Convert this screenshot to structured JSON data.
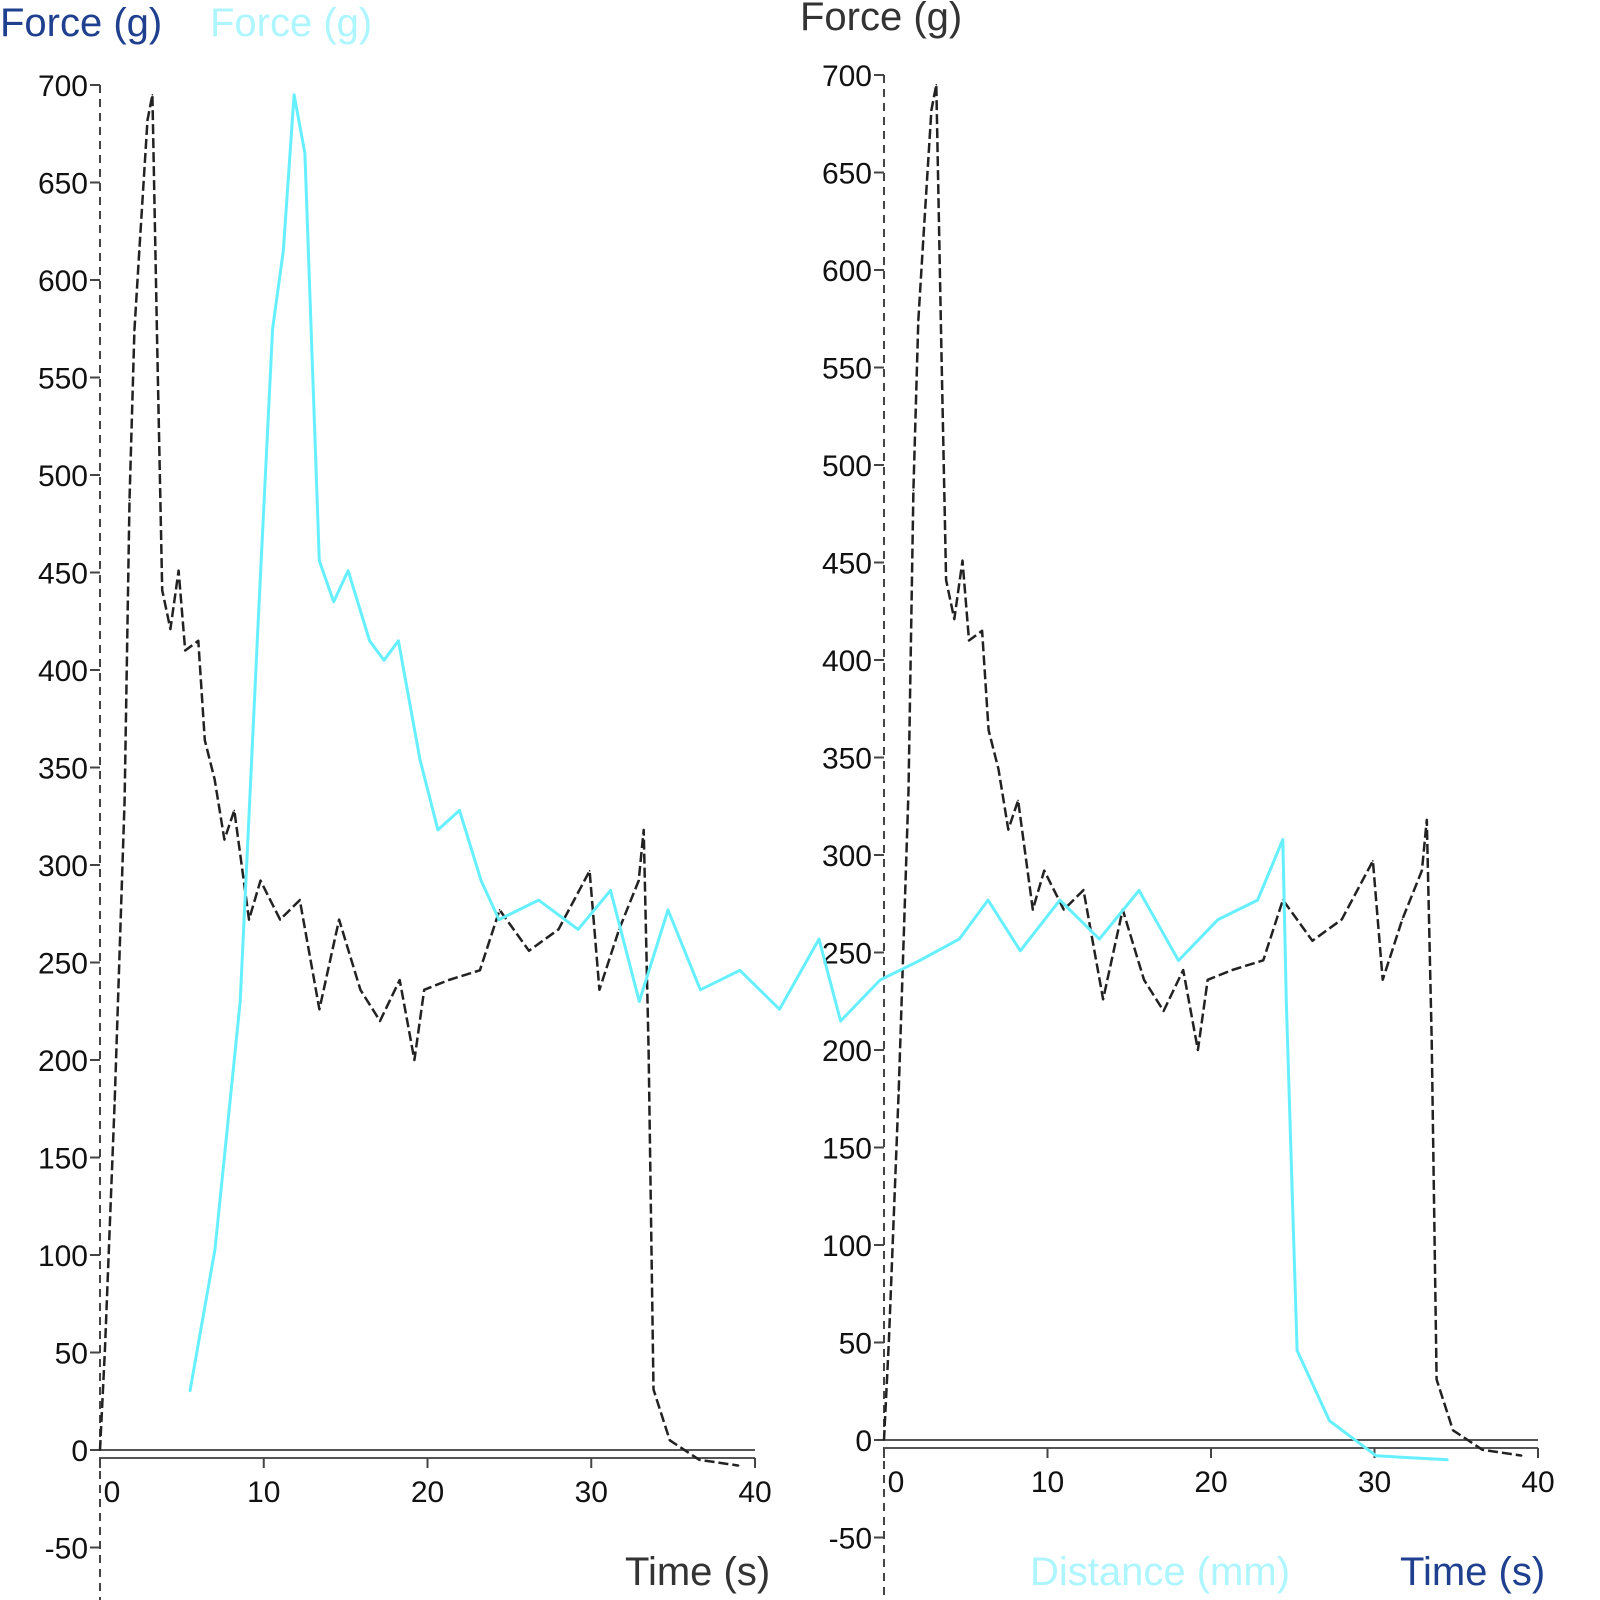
{
  "chart_data": [
    {
      "type": "line",
      "panel": "left",
      "ylabel": "Force (g)",
      "xlabel": "Time (s)",
      "xlim": [
        0,
        40
      ],
      "ylim": [
        -50,
        700
      ],
      "xticks": [
        0,
        10,
        20,
        30,
        40
      ],
      "yticks": [
        700,
        650,
        600,
        550,
        500,
        450,
        400,
        350,
        300,
        250,
        200,
        150,
        100,
        50,
        0,
        -50
      ],
      "grid": false,
      "line_color": "#222222",
      "line_style": "dashed",
      "series": [
        {
          "x": [
            0,
            0.3,
            0.9,
            1.5,
            1.8,
            2.1,
            2.4,
            2.9,
            3.2,
            3.5,
            3.8,
            4.3,
            4.8,
            5.2,
            6,
            6.4,
            7,
            7.6,
            8.2,
            9.1,
            9.8,
            11,
            12.2,
            13.4,
            14.6,
            15.9,
            17.1,
            18.3,
            19.2,
            19.8,
            21.3,
            23.2,
            24.4,
            26.2,
            28,
            29.9,
            30.5,
            31.7,
            32.9,
            33.2,
            33.5,
            33.8,
            34.8,
            36.6,
            39
          ],
          "y": [
            0,
            51,
            179,
            333,
            487,
            574,
            615,
            682,
            695,
            564,
            441,
            421,
            451,
            410,
            415,
            364,
            344,
            313,
            328,
            272,
            292,
            272,
            282,
            226,
            272,
            236,
            220,
            241,
            200,
            236,
            241,
            246,
            277,
            256,
            267,
            297,
            236,
            267,
            292,
            318,
            205,
            31,
            5,
            -5,
            -8
          ]
        }
      ]
    },
    {
      "type": "line",
      "panel": "right",
      "ylabel": "Force (g)",
      "xlabel": "Time (s)",
      "xlim": [
        0,
        40
      ],
      "ylim": [
        -50,
        700
      ],
      "xticks": [
        0,
        10,
        20,
        30,
        40
      ],
      "yticks": [
        700,
        650,
        600,
        550,
        500,
        450,
        400,
        350,
        300,
        250,
        200,
        150,
        100,
        50,
        0,
        -50
      ],
      "grid": false,
      "line_color": "#222222",
      "line_style": "dashed",
      "series": [
        {
          "x": [
            0,
            0.3,
            0.9,
            1.5,
            1.8,
            2.1,
            2.4,
            2.9,
            3.2,
            3.5,
            3.8,
            4.3,
            4.8,
            5.2,
            6,
            6.4,
            7,
            7.6,
            8.2,
            9.1,
            9.8,
            11,
            12.2,
            13.4,
            14.6,
            15.9,
            17.1,
            18.3,
            19.2,
            19.8,
            21.3,
            23.2,
            24.4,
            26.2,
            28,
            29.9,
            30.5,
            31.7,
            32.9,
            33.2,
            33.5,
            33.8,
            34.8,
            36.6,
            39
          ],
          "y": [
            0,
            51,
            179,
            333,
            487,
            574,
            615,
            682,
            695,
            564,
            441,
            421,
            451,
            410,
            415,
            364,
            344,
            313,
            328,
            272,
            292,
            272,
            282,
            226,
            272,
            236,
            220,
            241,
            200,
            236,
            241,
            246,
            277,
            256,
            267,
            297,
            236,
            267,
            292,
            318,
            205,
            31,
            5,
            -5,
            -8
          ]
        }
      ]
    },
    {
      "type": "line",
      "panel": "overlay",
      "ylabel": "Force (g)",
      "xlabel": "Distance (mm)",
      "xlim": [
        0,
        40
      ],
      "ylim": [
        -50,
        700
      ],
      "grid": false,
      "line_color": "#66f0ff",
      "series": [
        {
          "x": [
            2.5,
            3.2,
            3.9,
            4.4,
            4.8,
            5.1,
            5.4,
            5.7,
            6.1,
            6.5,
            6.9,
            7.5,
            7.9,
            8.3,
            8.9,
            9.4,
            10,
            10.6,
            11.1,
            12.2,
            13.3,
            14.2,
            15,
            15.8,
            16.7,
            17.8,
            18.9,
            20,
            20.6,
            21.7,
            22.8,
            23.9,
            24.7,
            25.6,
            26.7,
            27.8,
            28.9,
            30,
            31.1,
            32.2,
            32.9,
            33,
            33.3,
            34.2,
            35.5,
            37.5
          ],
          "y": [
            30,
            103,
            230,
            425,
            575,
            615,
            695,
            665,
            456,
            435,
            451,
            415,
            405,
            415,
            354,
            318,
            328,
            292,
            272,
            282,
            267,
            287,
            230,
            277,
            236,
            246,
            226,
            262,
            220,
            241,
            251,
            262,
            282,
            256,
            282,
            262,
            287,
            251,
            272,
            282,
            313,
            230,
            51,
            15,
            -3,
            -5
          ]
        }
      ]
    }
  ]
}
